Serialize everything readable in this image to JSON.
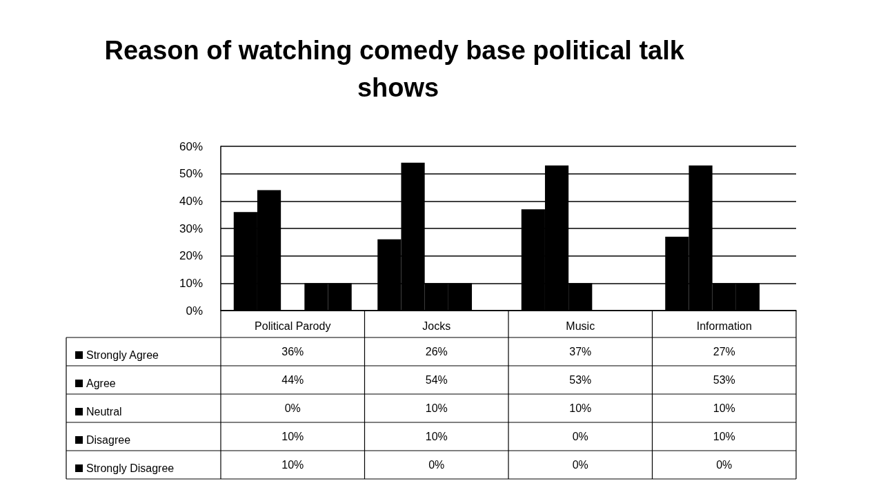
{
  "chart_data": {
    "type": "bar",
    "title": "Reason of watching comedy base political talk shows",
    "categories": [
      "Political Parody",
      "Jocks",
      "Music",
      "Information"
    ],
    "series": [
      {
        "name": "Strongly Agree",
        "color": "#000000",
        "values": [
          36,
          26,
          37,
          27
        ],
        "value_labels": [
          "36%",
          "26%",
          "37%",
          "27%"
        ]
      },
      {
        "name": "Agree",
        "color": "#000000",
        "values": [
          44,
          54,
          53,
          53
        ],
        "value_labels": [
          "44%",
          "54%",
          "53%",
          "53%"
        ]
      },
      {
        "name": "Neutral",
        "color": "#000000",
        "values": [
          0,
          10,
          10,
          10
        ],
        "value_labels": [
          "0%",
          "10%",
          "10%",
          "10%"
        ]
      },
      {
        "name": "Disagree",
        "color": "#000000",
        "values": [
          10,
          10,
          0,
          10
        ],
        "value_labels": [
          "10%",
          "10%",
          "0%",
          "10%"
        ]
      },
      {
        "name": "Strongly Disagree",
        "color": "#000000",
        "values": [
          10,
          0,
          0,
          0
        ],
        "value_labels": [
          "10%",
          "0%",
          "0%",
          "0%"
        ]
      }
    ],
    "ylim": [
      0,
      60
    ],
    "yticks": [
      {
        "value": 0,
        "label": "0%"
      },
      {
        "value": 10,
        "label": "10%"
      },
      {
        "value": 20,
        "label": "20%"
      },
      {
        "value": 30,
        "label": "30%"
      },
      {
        "value": 40,
        "label": "40%"
      },
      {
        "value": 50,
        "label": "50%"
      },
      {
        "value": 60,
        "label": "60%"
      }
    ],
    "grid": "y",
    "legend": "bottom left"
  }
}
